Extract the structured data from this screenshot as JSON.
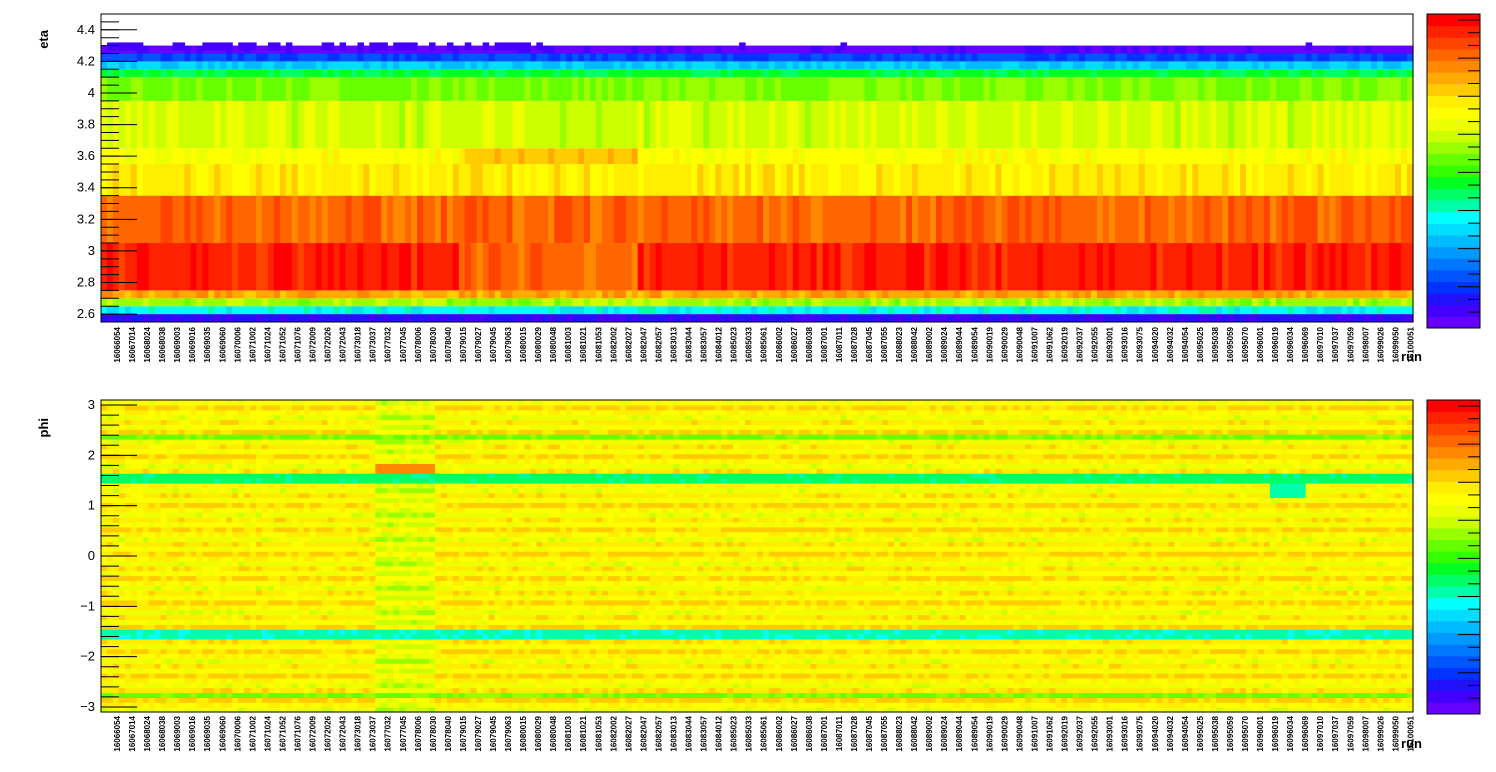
{
  "chart_data": [
    {
      "type": "heatmap",
      "ylabel": "eta",
      "xlabel": "run",
      "yticks": [
        2.6,
        2.8,
        3,
        3.2,
        3.4,
        3.6,
        3.8,
        4,
        4.2,
        4.4
      ],
      "ylim": [
        2.55,
        4.5
      ],
      "eta_bands": [
        {
          "lo": 2.55,
          "hi": 2.6,
          "level": 0.08
        },
        {
          "lo": 2.6,
          "hi": 2.65,
          "level": 0.35
        },
        {
          "lo": 2.65,
          "hi": 2.7,
          "level": 0.58
        },
        {
          "lo": 2.7,
          "hi": 2.75,
          "level": 0.8
        },
        {
          "lo": 2.75,
          "hi": 3.05,
          "level": 0.95
        },
        {
          "lo": 3.05,
          "hi": 3.35,
          "level": 0.87
        },
        {
          "lo": 3.35,
          "hi": 3.55,
          "level": 0.72
        },
        {
          "lo": 3.55,
          "hi": 3.65,
          "level": 0.68
        },
        {
          "lo": 3.65,
          "hi": 3.95,
          "level": 0.62
        },
        {
          "lo": 3.95,
          "hi": 4.1,
          "level": 0.55
        },
        {
          "lo": 4.1,
          "hi": 4.15,
          "level": 0.45
        },
        {
          "lo": 4.15,
          "hi": 4.2,
          "level": 0.3
        },
        {
          "lo": 4.2,
          "hi": 4.25,
          "level": 0.15
        },
        {
          "lo": 4.25,
          "hi": 4.3,
          "level": 0.02
        }
      ]
    },
    {
      "type": "heatmap",
      "ylabel": "phi",
      "xlabel": "run",
      "yticks": [
        -3,
        -2,
        -1,
        0,
        1,
        2,
        3
      ],
      "ylim": [
        -3.1,
        3.1
      ],
      "phi_features": [
        {
          "lo": 1.45,
          "hi": 1.6,
          "level": 0.42
        },
        {
          "lo": -1.6,
          "hi": -1.45,
          "level": 0.38
        },
        {
          "lo": 2.3,
          "hi": 2.45,
          "level": 0.55
        },
        {
          "lo": -2.85,
          "hi": -2.7,
          "level": 0.55
        }
      ]
    }
  ],
  "runs": [
    "16066054",
    "16067014",
    "16068024",
    "16068038",
    "16069003",
    "16069016",
    "16069035",
    "16069060",
    "16070006",
    "16071002",
    "16071024",
    "16071052",
    "16071076",
    "16072009",
    "16072026",
    "16072043",
    "16073018",
    "16073037",
    "16077032",
    "16077045",
    "16078006",
    "16078030",
    "16078040",
    "16079015",
    "16079027",
    "16079045",
    "16079063",
    "16080015",
    "16080029",
    "16080048",
    "16081003",
    "16081021",
    "16081053",
    "16082002",
    "16082027",
    "16082047",
    "16082057",
    "16083013",
    "16083044",
    "16083057",
    "16084012",
    "16085023",
    "16085033",
    "16085061",
    "16086002",
    "16086027",
    "16086038",
    "16087001",
    "16087011",
    "16087028",
    "16087045",
    "16087055",
    "16088023",
    "16088042",
    "16089002",
    "16089024",
    "16089044",
    "16089054",
    "16090019",
    "16090029",
    "16090048",
    "16091007",
    "16091062",
    "16092019",
    "16092037",
    "16092055",
    "16093001",
    "16093016",
    "16093075",
    "16094020",
    "16094032",
    "16094054",
    "16095025",
    "16095038",
    "16095059",
    "16095070",
    "16096001",
    "16096019",
    "16096034",
    "16096069",
    "16097010",
    "16097037",
    "16097059",
    "16098007",
    "16099026",
    "16099050",
    "16100051"
  ],
  "colorbar": {
    "palette": [
      "#6600ff",
      "#4400ff",
      "#2211ff",
      "#0033ff",
      "#0055ff",
      "#0077ff",
      "#0099ff",
      "#00bbff",
      "#00ddff",
      "#00ffff",
      "#00ffaa",
      "#00ff66",
      "#00ff22",
      "#33ff00",
      "#66ff00",
      "#99ff00",
      "#ccff00",
      "#eeff00",
      "#ffff00",
      "#ffee00",
      "#ffcc00",
      "#ffaa00",
      "#ff8800",
      "#ff6600",
      "#ff4400",
      "#ff2200",
      "#ff0000"
    ]
  }
}
